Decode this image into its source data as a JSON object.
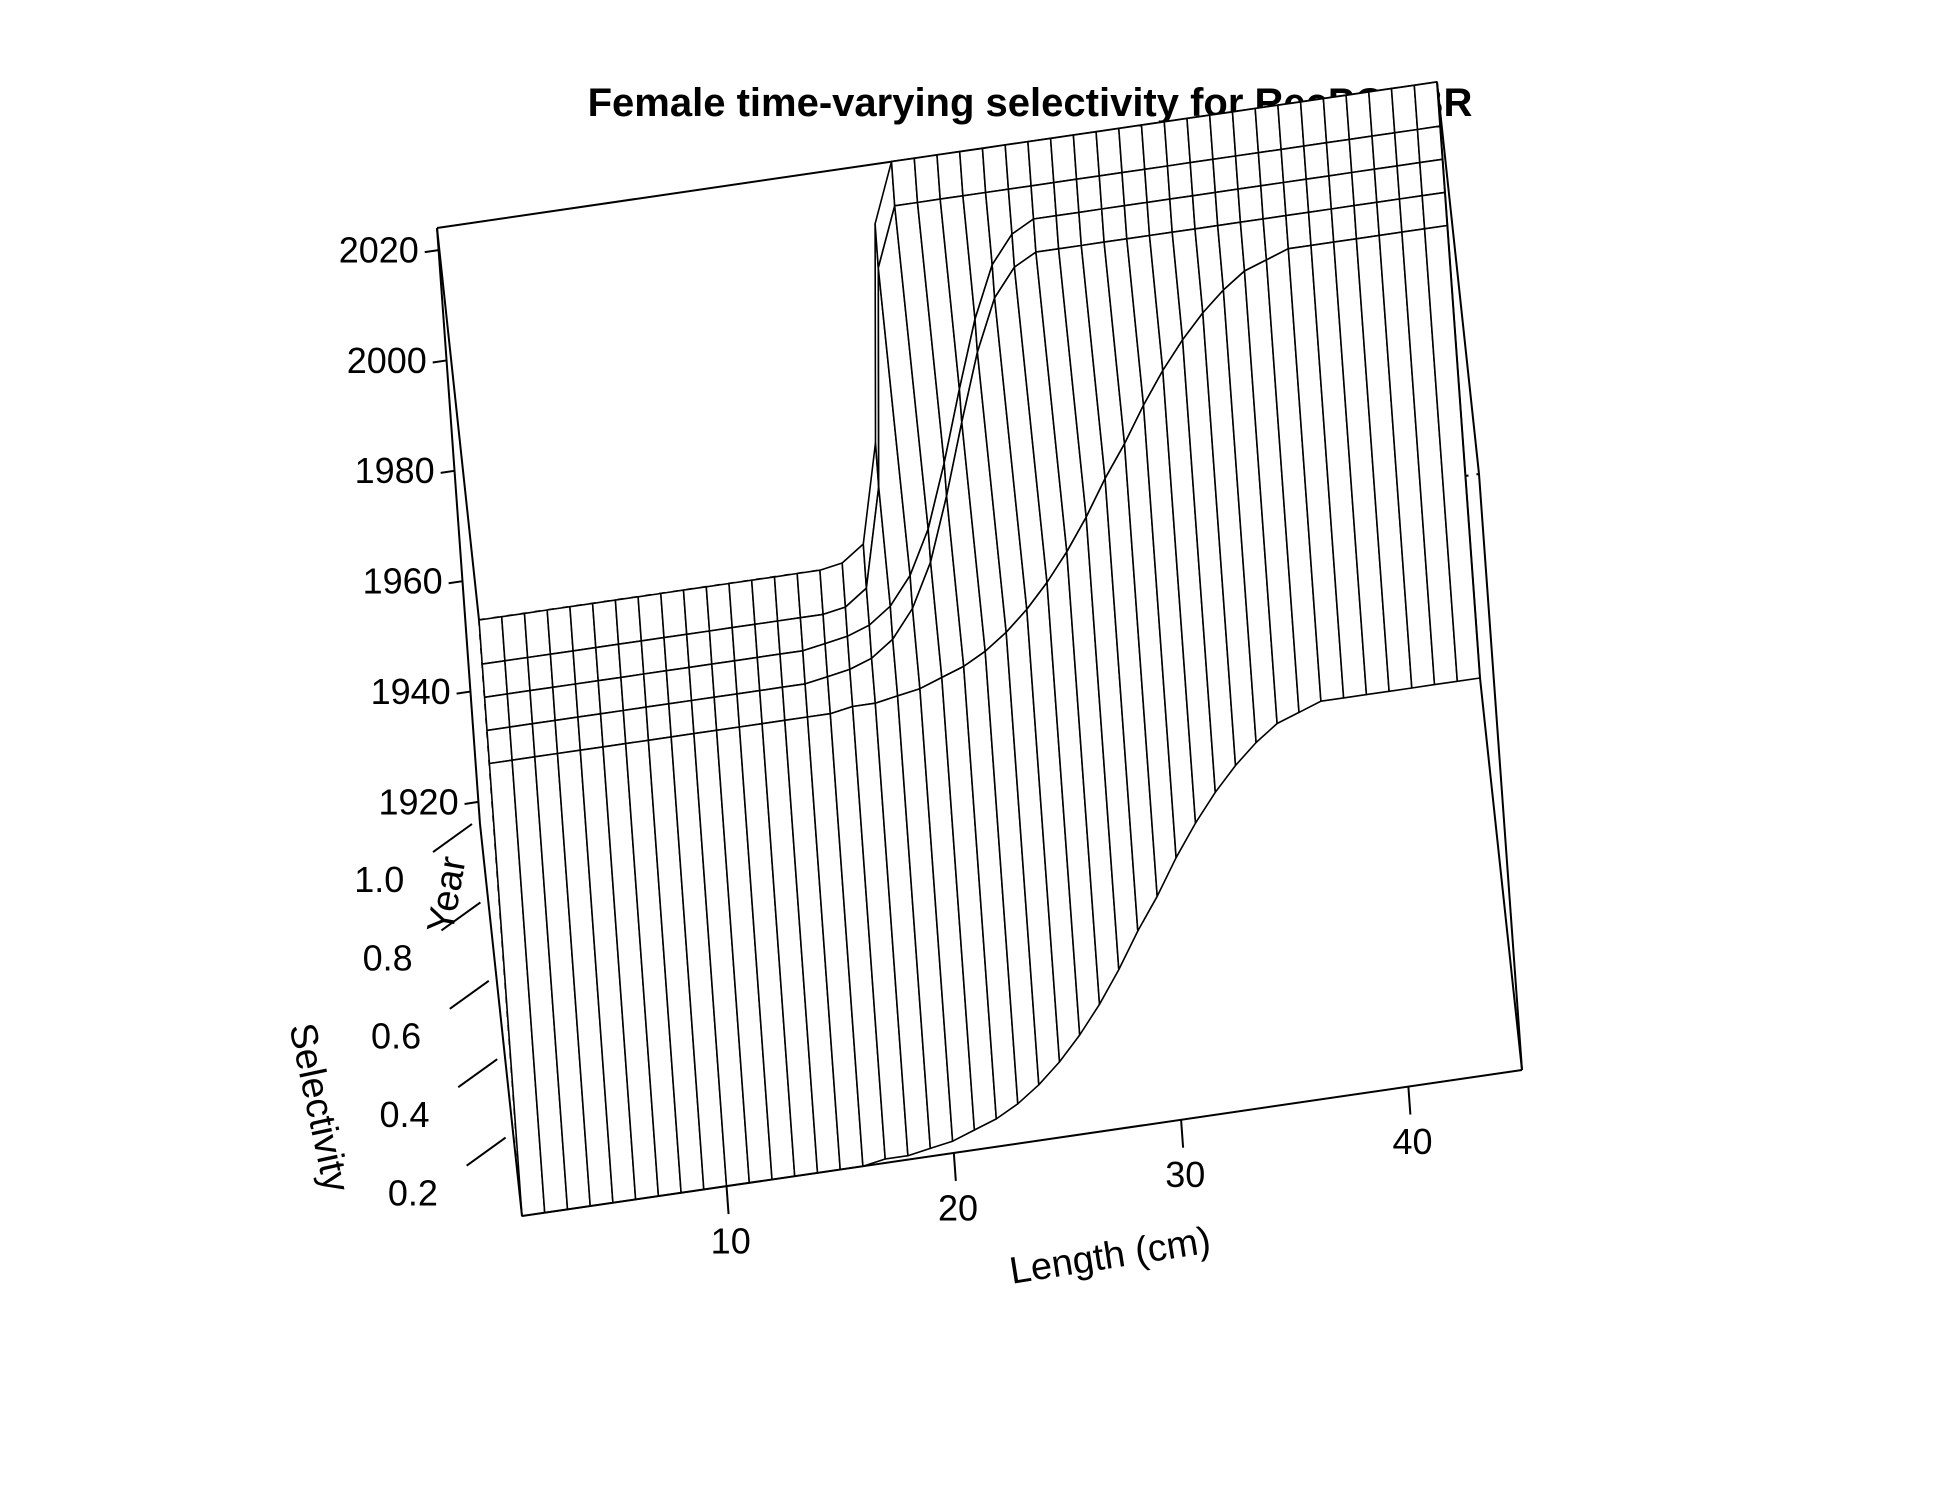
{
  "chart_data": {
    "type": "surface",
    "title": "Female time-varying selectivity for RecPCOBR",
    "xlabel": "Length (cm)",
    "ylabel": "Year",
    "zlabel": "Selectivity",
    "x_ticks": [
      "10",
      "20",
      "30",
      "40"
    ],
    "y_ticks": [
      "1920",
      "1940",
      "1960",
      "1980",
      "2000",
      "2020"
    ],
    "z_ticks": [
      "0.2",
      "0.4",
      "0.6",
      "0.8",
      "1.0"
    ],
    "xlim": [
      1,
      45
    ],
    "ylim": [
      1916,
      2024
    ],
    "zlim": [
      0,
      1
    ],
    "length_bins": [
      1,
      2,
      3,
      4,
      5,
      6,
      7,
      8,
      9,
      10,
      11,
      12,
      13,
      14,
      15,
      16,
      17,
      18,
      19,
      20,
      21,
      22,
      23,
      24,
      25,
      26,
      27,
      28,
      29,
      30,
      31,
      32,
      33,
      34,
      35,
      36,
      37,
      38,
      39,
      40,
      41,
      42,
      43,
      44,
      45
    ],
    "years": [
      1916,
      1998,
      2004,
      2010,
      2016,
      2024
    ],
    "selectivity": [
      [
        0.0,
        0.0,
        0.0,
        0.0,
        0.0,
        0.0,
        0.0,
        0.0,
        0.0,
        0.0,
        0.0,
        0.0,
        0.0,
        0.0,
        0.0,
        0.0,
        0.01,
        0.01,
        0.02,
        0.03,
        0.05,
        0.07,
        0.1,
        0.14,
        0.19,
        0.25,
        0.32,
        0.4,
        0.49,
        0.57,
        0.66,
        0.74,
        0.81,
        0.87,
        0.92,
        0.96,
        0.98,
        1.0,
        1.0,
        1.0,
        1.0,
        1.0,
        1.0,
        1.0,
        1.0
      ],
      [
        0.0,
        0.0,
        0.0,
        0.0,
        0.0,
        0.0,
        0.0,
        0.0,
        0.0,
        0.0,
        0.0,
        0.0,
        0.0,
        0.0,
        0.0,
        0.0,
        0.01,
        0.01,
        0.02,
        0.03,
        0.05,
        0.07,
        0.1,
        0.14,
        0.19,
        0.25,
        0.32,
        0.4,
        0.49,
        0.57,
        0.66,
        0.74,
        0.81,
        0.87,
        0.92,
        0.96,
        0.98,
        1.0,
        1.0,
        1.0,
        1.0,
        1.0,
        1.0,
        1.0,
        1.0
      ],
      [
        0.0,
        0.0,
        0.0,
        0.0,
        0.0,
        0.0,
        0.0,
        0.0,
        0.0,
        0.0,
        0.0,
        0.0,
        0.0,
        0.0,
        0.0,
        0.01,
        0.02,
        0.04,
        0.08,
        0.15,
        0.26,
        0.42,
        0.6,
        0.77,
        0.9,
        0.97,
        1.0,
        1.0,
        1.0,
        1.0,
        1.0,
        1.0,
        1.0,
        1.0,
        1.0,
        1.0,
        1.0,
        1.0,
        1.0,
        1.0,
        1.0,
        1.0,
        1.0,
        1.0,
        1.0
      ],
      [
        0.0,
        0.0,
        0.0,
        0.0,
        0.0,
        0.0,
        0.0,
        0.0,
        0.0,
        0.0,
        0.0,
        0.0,
        0.0,
        0.0,
        0.0,
        0.01,
        0.02,
        0.04,
        0.08,
        0.15,
        0.26,
        0.42,
        0.6,
        0.77,
        0.9,
        0.97,
        1.0,
        1.0,
        1.0,
        1.0,
        1.0,
        1.0,
        1.0,
        1.0,
        1.0,
        1.0,
        1.0,
        1.0,
        1.0,
        1.0,
        1.0,
        1.0,
        1.0,
        1.0,
        1.0
      ],
      [
        0.0,
        0.0,
        0.0,
        0.0,
        0.0,
        0.0,
        0.0,
        0.0,
        0.0,
        0.0,
        0.0,
        0.0,
        0.0,
        0.0,
        0.0,
        0.0,
        0.01,
        0.05,
        0.3,
        0.85,
        1.0,
        1.0,
        1.0,
        1.0,
        1.0,
        1.0,
        1.0,
        1.0,
        1.0,
        1.0,
        1.0,
        1.0,
        1.0,
        1.0,
        1.0,
        1.0,
        1.0,
        1.0,
        1.0,
        1.0,
        1.0,
        1.0,
        1.0,
        1.0,
        1.0
      ],
      [
        0.0,
        0.0,
        0.0,
        0.0,
        0.0,
        0.0,
        0.0,
        0.0,
        0.0,
        0.0,
        0.0,
        0.0,
        0.0,
        0.0,
        0.0,
        0.0,
        0.01,
        0.05,
        0.3,
        0.85,
        1.0,
        1.0,
        1.0,
        1.0,
        1.0,
        1.0,
        1.0,
        1.0,
        1.0,
        1.0,
        1.0,
        1.0,
        1.0,
        1.0,
        1.0,
        1.0,
        1.0,
        1.0,
        1.0,
        1.0,
        1.0,
        1.0,
        1.0,
        1.0,
        1.0
      ]
    ]
  }
}
